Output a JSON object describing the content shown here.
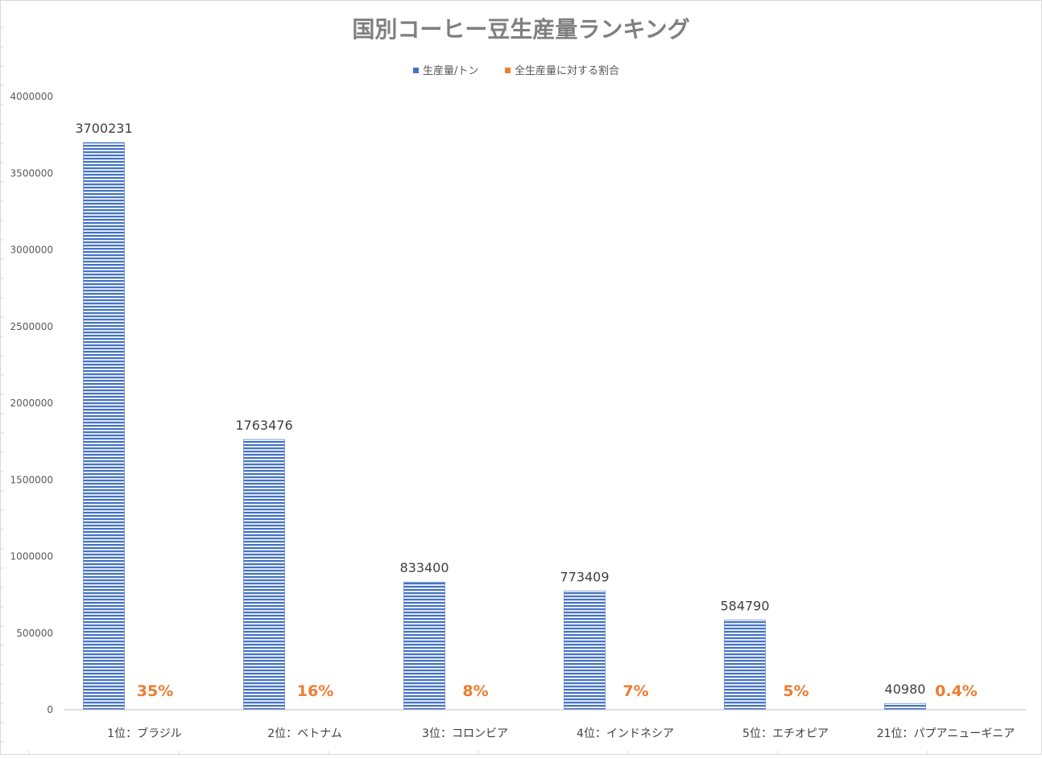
{
  "chart_data": {
    "type": "bar",
    "title": "国別コーヒー豆生産量ランキング",
    "categories": [
      "1位：ブラジル",
      "2位：ベトナム",
      "3位：コロンビア",
      "4位：インドネシア",
      "5位：エチオピア",
      "21位：パプアニューギニア"
    ],
    "series": [
      {
        "name": "生産量/トン",
        "values": [
          3700231,
          1763476,
          833400,
          773409,
          584790,
          40980
        ],
        "labels": [
          "3700231",
          "1763476",
          "833400",
          "773409",
          "584790",
          "40980"
        ],
        "color": "#4472c4"
      },
      {
        "name": "全生産量に対する割合",
        "values": [
          0.35,
          0.16,
          0.08,
          0.07,
          0.05,
          0.004
        ],
        "labels": [
          "35%",
          "16%",
          "8%",
          "7%",
          "5%",
          "0.4%"
        ],
        "color": "#ed7d31"
      }
    ],
    "ylim": [
      0,
      4000000
    ],
    "yticks": [
      "0",
      "500000",
      "1000000",
      "1500000",
      "2000000",
      "2500000",
      "3000000",
      "3500000",
      "4000000"
    ],
    "xlabel": "",
    "ylabel": "",
    "grid": false,
    "legend_position": "top"
  }
}
